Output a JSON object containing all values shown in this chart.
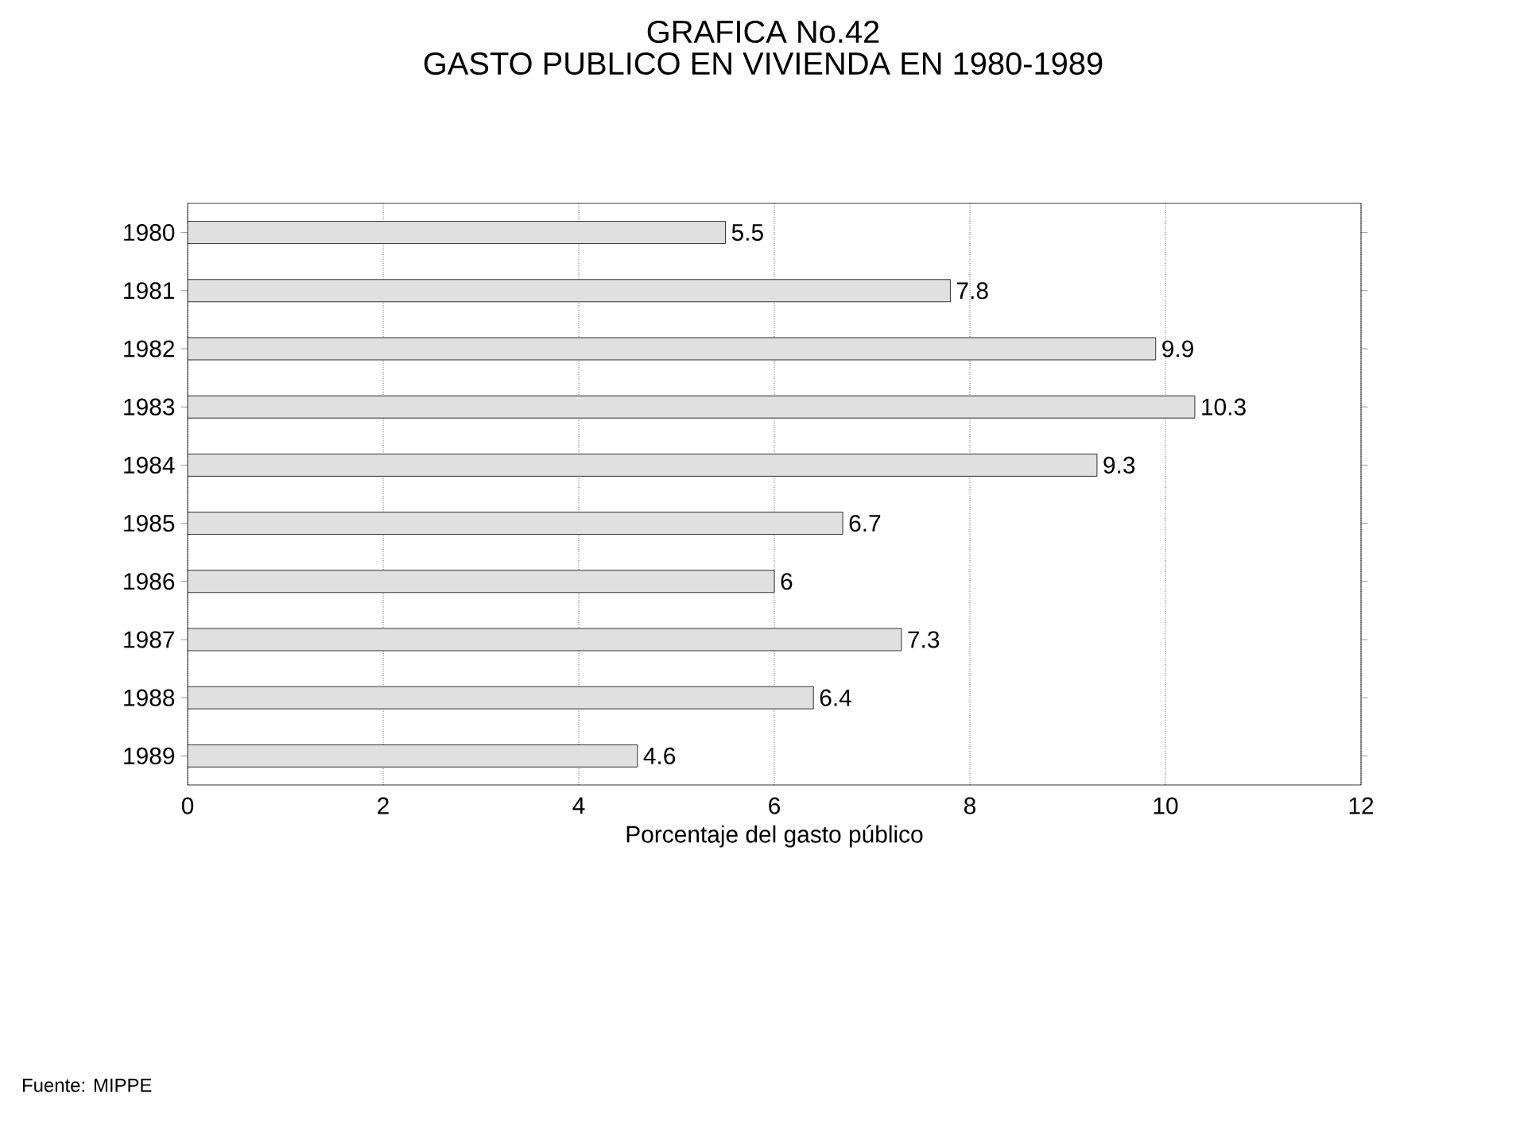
{
  "chart_data": {
    "type": "bar",
    "orientation": "horizontal",
    "title": "GRAFICA No.42",
    "subtitle": "GASTO PUBLICO EN VIVIENDA EN 1980-1989",
    "xlabel": "Porcentaje del gasto público",
    "categories": [
      "1980",
      "1981",
      "1982",
      "1983",
      "1984",
      "1985",
      "1986",
      "1987",
      "1988",
      "1989"
    ],
    "values": [
      5.5,
      7.8,
      9.9,
      10.3,
      9.3,
      6.7,
      6,
      7.3,
      6.4,
      4.6
    ],
    "color": "#e0e0e0",
    "xlim": [
      0,
      12
    ],
    "xticks": [
      0,
      2,
      4,
      6,
      8,
      10,
      12
    ],
    "grid": "x",
    "data_labels": true,
    "annotations": [
      "Fuente: MIPPE"
    ]
  }
}
